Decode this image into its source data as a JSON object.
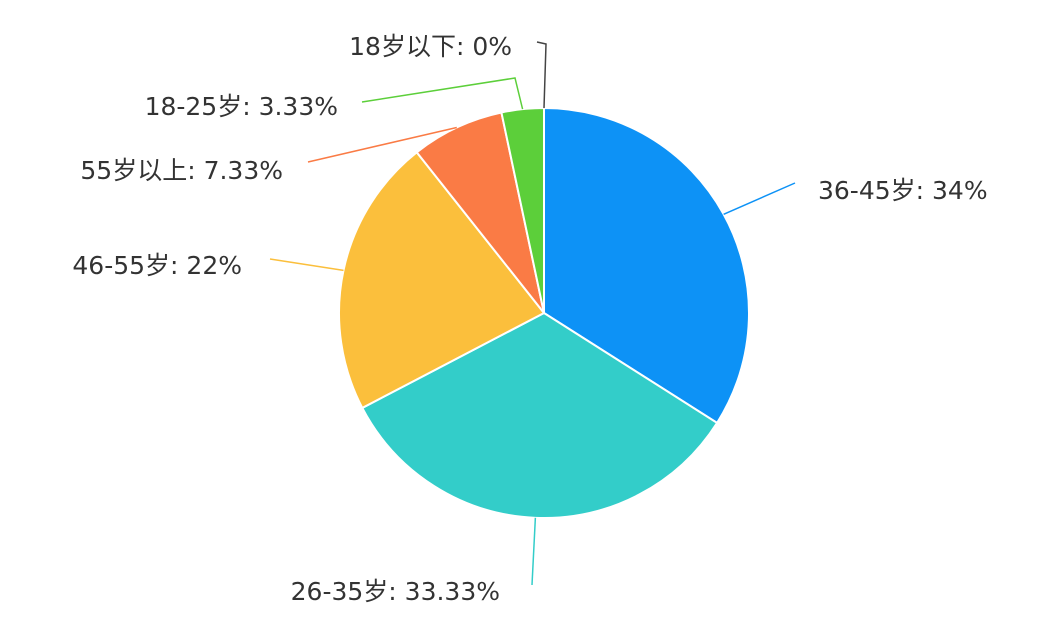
{
  "chart_data": {
    "type": "pie",
    "labels": [
      "36-45岁: 34%",
      "26-35岁: 33.33%",
      "46-55岁: 22%",
      "55岁以上: 7.33%",
      "18-25岁: 3.33%",
      "18岁以下: 0%"
    ],
    "values": [
      34,
      33.33,
      22,
      7.33,
      3.33,
      0
    ],
    "colors": [
      "#0d92f6",
      "#33cdc9",
      "#fbbf3c",
      "#fa7b45",
      "#5ccf3a",
      "#444444"
    ]
  }
}
